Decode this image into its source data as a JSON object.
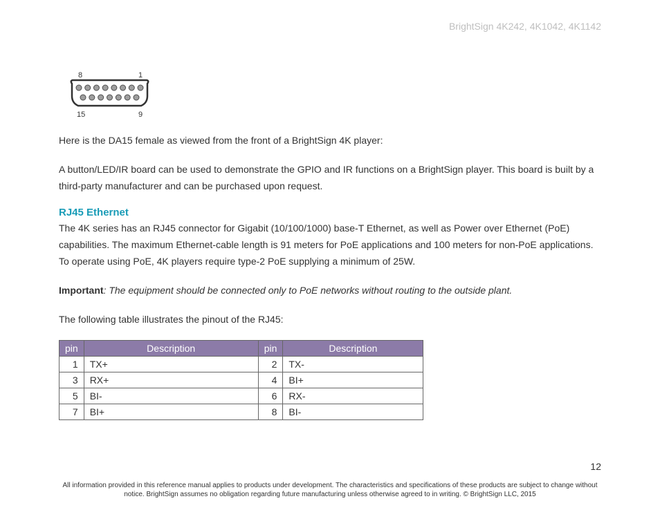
{
  "header": {
    "right_text": "BrightSign 4K242, 4K1042, 4K1142"
  },
  "diagram": {
    "labels": {
      "tl": "8",
      "tr": "1",
      "bl": "15",
      "br": "9"
    },
    "top_pins": 8,
    "bottom_pins": 7,
    "shell_color": "#333",
    "pin_fill": "#9e9e9e",
    "pin_stroke": "#4d4d4d"
  },
  "para1": "Here is the DA15 female as viewed from the front of a BrightSign 4K player:",
  "para2": "A button/LED/IR board can be used to demonstrate the GPIO and IR functions on a BrightSign player. This board is built by a third-party manufacturer and can be purchased upon request.",
  "section_heading": "RJ45 Ethernet",
  "para3": "The 4K series has an RJ45 connector for Gigabit (10/100/1000) base-T Ethernet, as well as Power over Ethernet (PoE) capabilities. The maximum Ethernet-cable length is 91 meters for PoE applications and 100 meters for non-PoE applications. To operate using PoE, 4K players require type-2 PoE supplying a minimum of 25W.",
  "important": {
    "label": "Important",
    "text": ": The equipment should be connected only to PoE networks without routing to the outside plant."
  },
  "para4": "The following table illustrates the pinout of the RJ45:",
  "table": {
    "headers": {
      "pin": "pin",
      "desc": "Description"
    },
    "header_bg": "#8c7ba8",
    "header_color": "#ffffff",
    "border_color": "#666666",
    "rows": [
      {
        "pin_a": "1",
        "desc_a": "TX+",
        "pin_b": "2",
        "desc_b": "TX-"
      },
      {
        "pin_a": "3",
        "desc_a": "RX+",
        "pin_b": "4",
        "desc_b": "BI+"
      },
      {
        "pin_a": "5",
        "desc_a": "BI-",
        "pin_b": "6",
        "desc_b": "RX-"
      },
      {
        "pin_a": "7",
        "desc_a": "BI+",
        "pin_b": "8",
        "desc_b": "BI-"
      }
    ]
  },
  "page_number": "12",
  "footer": "All information provided in this reference manual applies to products under development. The characteristics and specifications of these products are subject to change without notice. BrightSign assumes no obligation regarding future manufacturing unless otherwise agreed to in writing. © BrightSign LLC, 2015"
}
